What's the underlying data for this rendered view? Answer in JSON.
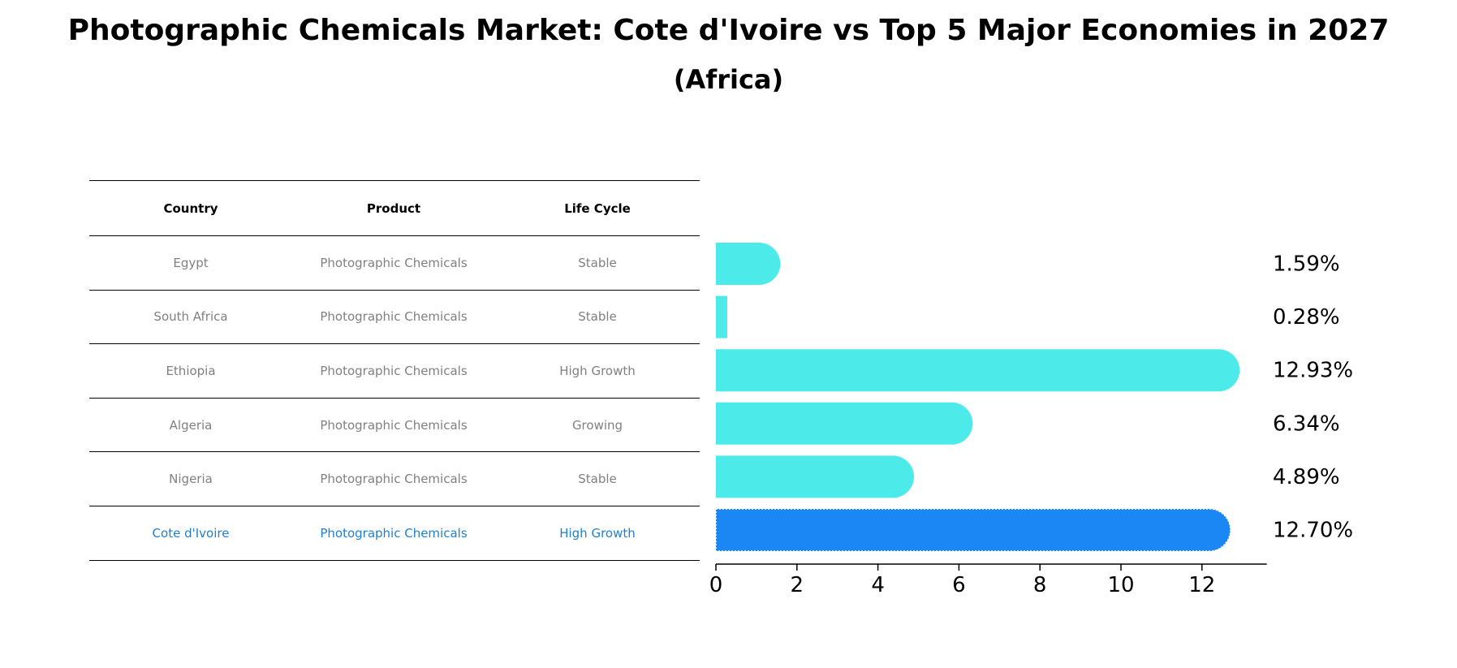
{
  "chart_data": {
    "type": "bar",
    "orientation": "horizontal",
    "title": "Photographic Chemicals Market: Cote d'Ivoire vs Top 5 Major Economies in 2027",
    "subtitle": "(Africa)",
    "categories": [
      "Egypt",
      "South Africa",
      "Ethiopia",
      "Algeria",
      "Nigeria",
      "Cote d'Ivoire"
    ],
    "values": [
      1.59,
      0.28,
      12.93,
      6.34,
      4.89,
      12.7
    ],
    "value_labels": [
      "1.59%",
      "0.28%",
      "12.93%",
      "6.34%",
      "4.89%",
      "12.70%"
    ],
    "xlim": [
      0,
      13.6
    ],
    "xticks": [
      0,
      2,
      4,
      6,
      8,
      10,
      12
    ],
    "colors": {
      "default": "#4deaea",
      "highlight": "#1a87f5"
    },
    "highlight_index": 5
  },
  "table": {
    "headers": [
      "Country",
      "Product",
      "Life Cycle"
    ],
    "rows": [
      {
        "country": "Egypt",
        "product": "Photographic Chemicals",
        "life_cycle": "Stable"
      },
      {
        "country": "South Africa",
        "product": "Photographic Chemicals",
        "life_cycle": "Stable"
      },
      {
        "country": "Ethiopia",
        "product": "Photographic Chemicals",
        "life_cycle": "High Growth"
      },
      {
        "country": "Algeria",
        "product": "Photographic Chemicals",
        "life_cycle": "Growing"
      },
      {
        "country": "Nigeria",
        "product": "Photographic Chemicals",
        "life_cycle": "Stable"
      },
      {
        "country": "Cote d'Ivoire",
        "product": "Photographic Chemicals",
        "life_cycle": "High Growth"
      }
    ]
  }
}
